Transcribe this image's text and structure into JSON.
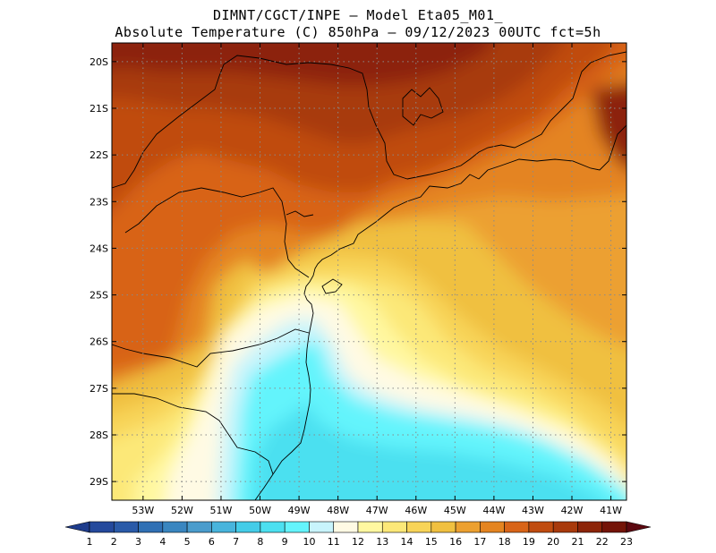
{
  "title_line_1": "DIMNT/CGCT/INPE –  Model Eta05_M01_",
  "title_line_2": "Absolute Temperature (C) 850hPa –  09/12/2023 00UTC fct=5h",
  "map": {
    "lon_range": [
      -53.8,
      -40.6
    ],
    "lat_range": [
      -29.4,
      -19.6
    ],
    "lat_ticks": [
      {
        "value": -20,
        "label": "20S"
      },
      {
        "value": -21,
        "label": "21S"
      },
      {
        "value": -22,
        "label": "22S"
      },
      {
        "value": -23,
        "label": "23S"
      },
      {
        "value": -24,
        "label": "24S"
      },
      {
        "value": -25,
        "label": "25S"
      },
      {
        "value": -26,
        "label": "26S"
      },
      {
        "value": -27,
        "label": "27S"
      },
      {
        "value": -28,
        "label": "28S"
      },
      {
        "value": -29,
        "label": "29S"
      }
    ],
    "lon_ticks": [
      {
        "value": -53,
        "label": "53W"
      },
      {
        "value": -52,
        "label": "52W"
      },
      {
        "value": -51,
        "label": "51W"
      },
      {
        "value": -50,
        "label": "50W"
      },
      {
        "value": -49,
        "label": "49W"
      },
      {
        "value": -48,
        "label": "48W"
      },
      {
        "value": -47,
        "label": "47W"
      },
      {
        "value": -46,
        "label": "46W"
      },
      {
        "value": -45,
        "label": "45W"
      },
      {
        "value": -44,
        "label": "44W"
      },
      {
        "value": -43,
        "label": "43W"
      },
      {
        "value": -42,
        "label": "42W"
      },
      {
        "value": -41,
        "label": "41W"
      }
    ],
    "gridlines": true
  },
  "colorbar": {
    "levels": [
      1,
      2,
      3,
      4,
      5,
      6,
      7,
      8,
      9,
      10,
      11,
      12,
      13,
      14,
      15,
      16,
      17,
      18,
      19,
      20,
      21,
      22,
      23
    ],
    "labels": [
      "1",
      "2",
      "3",
      "4",
      "5",
      "6",
      "7",
      "8",
      "9",
      "10",
      "11",
      "12",
      "13",
      "14",
      "15",
      "16",
      "17",
      "18",
      "19",
      "20",
      "21",
      "22",
      "23"
    ],
    "colors": [
      "#1e3c8c",
      "#24499c",
      "#2a5aa8",
      "#3070b4",
      "#3a86c0",
      "#4a9ccc",
      "#48b4dc",
      "#44cce8",
      "#4ce0f0",
      "#64f4fc",
      "#c8f4fc",
      "#fffae4",
      "#fff8a0",
      "#fce878",
      "#f8d458",
      "#f0c040",
      "#eca030",
      "#e48420",
      "#d86418",
      "#c04c10",
      "#a83a0c",
      "#8c2408",
      "#741408",
      "#5c0810"
    ]
  }
}
